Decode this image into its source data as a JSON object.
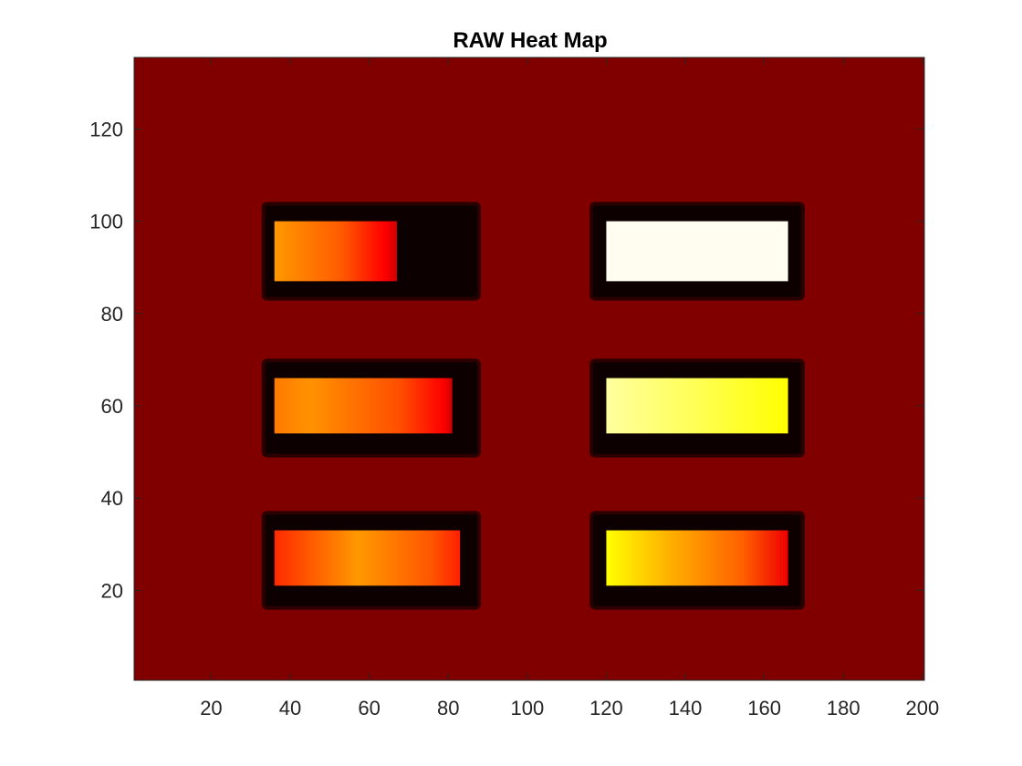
{
  "chart_data": {
    "type": "heatmap",
    "title": "RAW Heat Map",
    "xlabel": "",
    "ylabel": "",
    "xlim": [
      0.5,
      200.5
    ],
    "ylim": [
      0.5,
      135.5
    ],
    "x_ticks": [
      20,
      40,
      60,
      80,
      100,
      120,
      140,
      160,
      180,
      200
    ],
    "y_ticks": [
      20,
      40,
      60,
      80,
      100,
      120
    ],
    "colormap": "hot",
    "background_color": "#800000",
    "grid": false,
    "legend": "none",
    "frames": [
      {
        "name": "frame-top-left",
        "x": [
          33,
          88
        ],
        "y": [
          83,
          104
        ]
      },
      {
        "name": "frame-top-right",
        "x": [
          116,
          170
        ],
        "y": [
          83,
          104
        ]
      },
      {
        "name": "frame-middle-left",
        "x": [
          33,
          88
        ],
        "y": [
          49,
          70
        ]
      },
      {
        "name": "frame-middle-right",
        "x": [
          116,
          170
        ],
        "y": [
          49,
          70
        ]
      },
      {
        "name": "frame-bottom-left",
        "x": [
          33,
          88
        ],
        "y": [
          16,
          37
        ]
      },
      {
        "name": "frame-bottom-right",
        "x": [
          116,
          170
        ],
        "y": [
          16,
          37
        ]
      }
    ],
    "blocks": [
      {
        "name": "block-top-left",
        "x": [
          36,
          67
        ],
        "y": [
          87,
          100
        ],
        "gradient": [
          [
            0,
            "#ff9900"
          ],
          [
            0.55,
            "#ff5a00"
          ],
          [
            0.9,
            "#ff0000"
          ],
          [
            1,
            "#d00000"
          ]
        ]
      },
      {
        "name": "block-top-right",
        "x": [
          120,
          166
        ],
        "y": [
          87,
          100
        ],
        "gradient": [
          [
            0,
            "#fffdf0"
          ],
          [
            1,
            "#fffdf0"
          ]
        ]
      },
      {
        "name": "block-middle-left",
        "x": [
          36,
          81
        ],
        "y": [
          54,
          66
        ],
        "gradient": [
          [
            0,
            "#ff7a00"
          ],
          [
            0.2,
            "#ff9200"
          ],
          [
            0.7,
            "#ff5000"
          ],
          [
            0.95,
            "#ff0000"
          ],
          [
            1,
            "#cc0000"
          ]
        ]
      },
      {
        "name": "block-middle-right",
        "x": [
          120,
          166
        ],
        "y": [
          54,
          66
        ],
        "gradient": [
          [
            0,
            "#ffffa0"
          ],
          [
            0.5,
            "#ffff55"
          ],
          [
            1,
            "#ffff00"
          ]
        ]
      },
      {
        "name": "block-bottom-left",
        "x": [
          36,
          83
        ],
        "y": [
          21,
          33
        ],
        "gradient": [
          [
            0,
            "#ff2a00"
          ],
          [
            0.45,
            "#ff9900"
          ],
          [
            0.85,
            "#ff5500"
          ],
          [
            1,
            "#ff2000"
          ]
        ]
      },
      {
        "name": "block-bottom-right",
        "x": [
          120,
          166
        ],
        "y": [
          21,
          33
        ],
        "gradient": [
          [
            0,
            "#ffff00"
          ],
          [
            0.35,
            "#ffb000"
          ],
          [
            0.75,
            "#ff6000"
          ],
          [
            1,
            "#ee0000"
          ]
        ]
      }
    ]
  }
}
